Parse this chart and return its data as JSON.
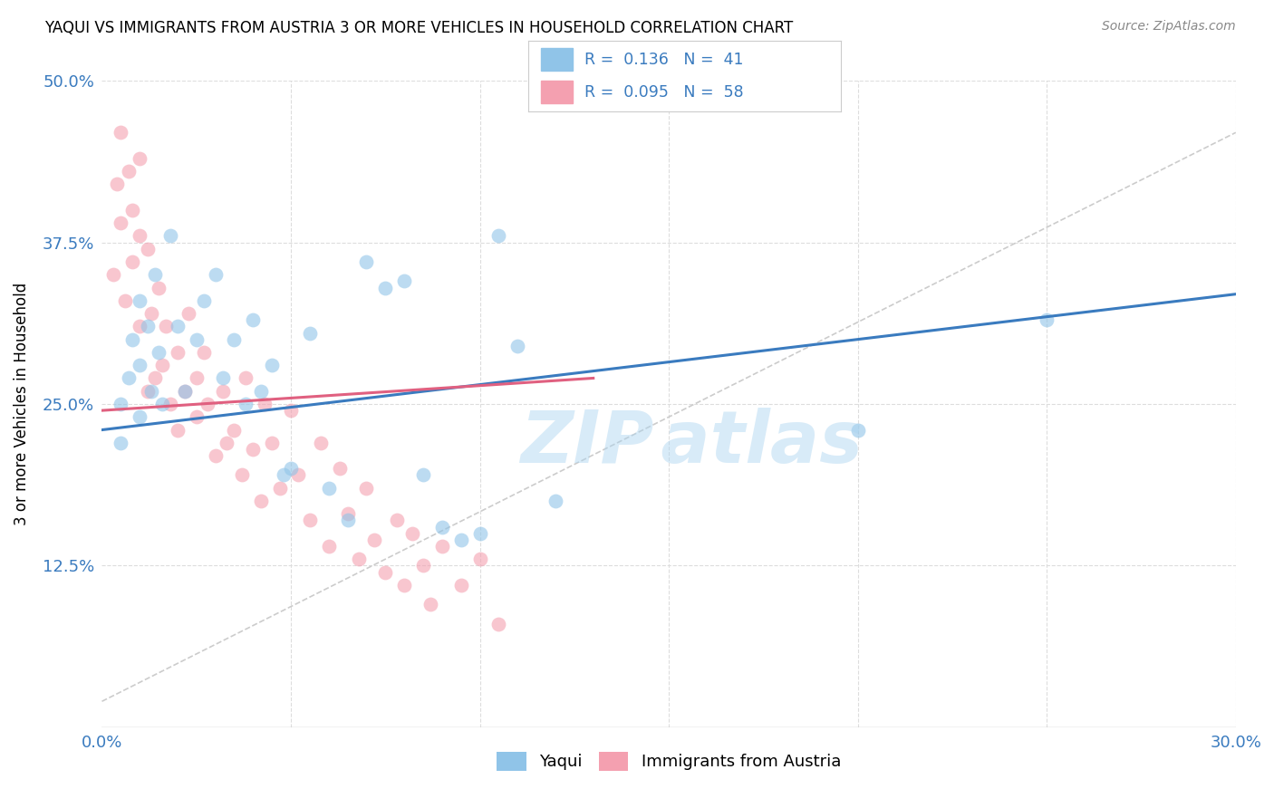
{
  "title": "YAQUI VS IMMIGRANTS FROM AUSTRIA 3 OR MORE VEHICLES IN HOUSEHOLD CORRELATION CHART",
  "source": "Source: ZipAtlas.com",
  "ylabel": "3 or more Vehicles in Household",
  "xmin": 0.0,
  "xmax": 0.3,
  "ymin": 0.0,
  "ymax": 0.5,
  "xticks": [
    0.0,
    0.05,
    0.1,
    0.15,
    0.2,
    0.25,
    0.3
  ],
  "xtick_labels": [
    "0.0%",
    "",
    "",
    "",
    "",
    "",
    "30.0%"
  ],
  "yticks": [
    0.0,
    0.125,
    0.25,
    0.375,
    0.5
  ],
  "ytick_labels": [
    "",
    "12.5%",
    "25.0%",
    "37.5%",
    "50.0%"
  ],
  "yaqui_R": 0.136,
  "yaqui_N": 41,
  "austria_R": 0.095,
  "austria_N": 58,
  "yaqui_color": "#90c4e8",
  "austria_color": "#f4a0b0",
  "yaqui_line_color": "#3a7bbf",
  "austria_line_color": "#e06080",
  "yaqui_x": [
    0.005,
    0.005,
    0.007,
    0.008,
    0.01,
    0.01,
    0.01,
    0.012,
    0.013,
    0.014,
    0.015,
    0.016,
    0.018,
    0.02,
    0.022,
    0.025,
    0.027,
    0.03,
    0.032,
    0.035,
    0.038,
    0.04,
    0.042,
    0.045,
    0.048,
    0.05,
    0.055,
    0.06,
    0.065,
    0.07,
    0.075,
    0.08,
    0.085,
    0.09,
    0.095,
    0.1,
    0.105,
    0.11,
    0.12,
    0.2,
    0.25
  ],
  "yaqui_y": [
    0.25,
    0.22,
    0.27,
    0.3,
    0.33,
    0.28,
    0.24,
    0.31,
    0.26,
    0.35,
    0.29,
    0.25,
    0.38,
    0.31,
    0.26,
    0.3,
    0.33,
    0.35,
    0.27,
    0.3,
    0.25,
    0.315,
    0.26,
    0.28,
    0.195,
    0.2,
    0.305,
    0.185,
    0.16,
    0.36,
    0.34,
    0.345,
    0.195,
    0.155,
    0.145,
    0.15,
    0.38,
    0.295,
    0.175,
    0.23,
    0.315
  ],
  "austria_x": [
    0.003,
    0.004,
    0.005,
    0.005,
    0.006,
    0.007,
    0.008,
    0.008,
    0.01,
    0.01,
    0.01,
    0.012,
    0.012,
    0.013,
    0.014,
    0.015,
    0.016,
    0.017,
    0.018,
    0.02,
    0.02,
    0.022,
    0.023,
    0.025,
    0.025,
    0.027,
    0.028,
    0.03,
    0.032,
    0.033,
    0.035,
    0.037,
    0.038,
    0.04,
    0.042,
    0.043,
    0.045,
    0.047,
    0.05,
    0.052,
    0.055,
    0.058,
    0.06,
    0.063,
    0.065,
    0.068,
    0.07,
    0.072,
    0.075,
    0.078,
    0.08,
    0.082,
    0.085,
    0.087,
    0.09,
    0.095,
    0.1,
    0.105
  ],
  "austria_y": [
    0.35,
    0.42,
    0.46,
    0.39,
    0.33,
    0.43,
    0.4,
    0.36,
    0.44,
    0.38,
    0.31,
    0.26,
    0.37,
    0.32,
    0.27,
    0.34,
    0.28,
    0.31,
    0.25,
    0.29,
    0.23,
    0.26,
    0.32,
    0.27,
    0.24,
    0.29,
    0.25,
    0.21,
    0.26,
    0.22,
    0.23,
    0.195,
    0.27,
    0.215,
    0.175,
    0.25,
    0.22,
    0.185,
    0.245,
    0.195,
    0.16,
    0.22,
    0.14,
    0.2,
    0.165,
    0.13,
    0.185,
    0.145,
    0.12,
    0.16,
    0.11,
    0.15,
    0.125,
    0.095,
    0.14,
    0.11,
    0.13,
    0.08
  ]
}
